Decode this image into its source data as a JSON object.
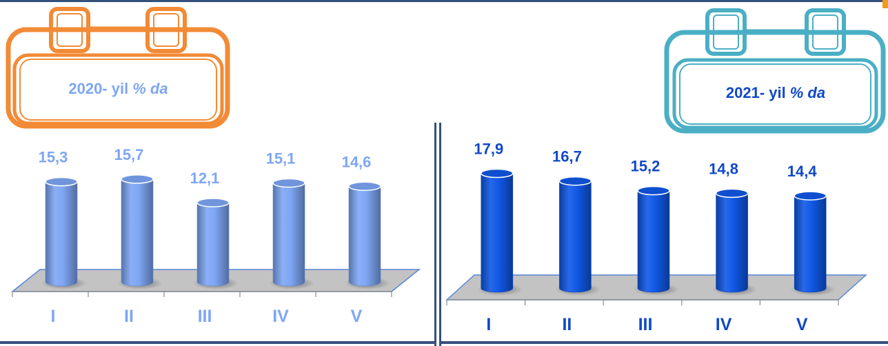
{
  "chart_data": [
    {
      "type": "bar",
      "title": "2020- yil",
      "unit": "% da",
      "categories": [
        "I",
        "II",
        "III",
        "IV",
        "V"
      ],
      "values": [
        15.3,
        15.7,
        12.1,
        15.1,
        14.6
      ],
      "value_labels": [
        "15,3",
        "15,7",
        "12,1",
        "15,1",
        "14,6"
      ],
      "color": "#7ea6f4",
      "label_color": "#7ea6f4",
      "legend": "none",
      "grid": false
    },
    {
      "type": "bar",
      "title": "2021- yil",
      "unit": "% da",
      "categories": [
        "I",
        "II",
        "III",
        "IV",
        "V"
      ],
      "values": [
        17.9,
        16.7,
        15.2,
        14.8,
        14.4
      ],
      "value_labels": [
        "17,9",
        "16,7",
        "15,2",
        "14,8",
        "14,4"
      ],
      "color": "#1058e6",
      "label_color": "#1048c8",
      "legend": "none",
      "grid": false
    }
  ],
  "badges": {
    "left": {
      "year": "2020- yil",
      "unit": "% da",
      "frame_color": "#f28a36",
      "text_color": "#7ea6f4"
    },
    "right": {
      "year": "2021- yil",
      "unit": "% da",
      "frame_color": "#4aafc4",
      "text_color": "#1048c8"
    }
  }
}
